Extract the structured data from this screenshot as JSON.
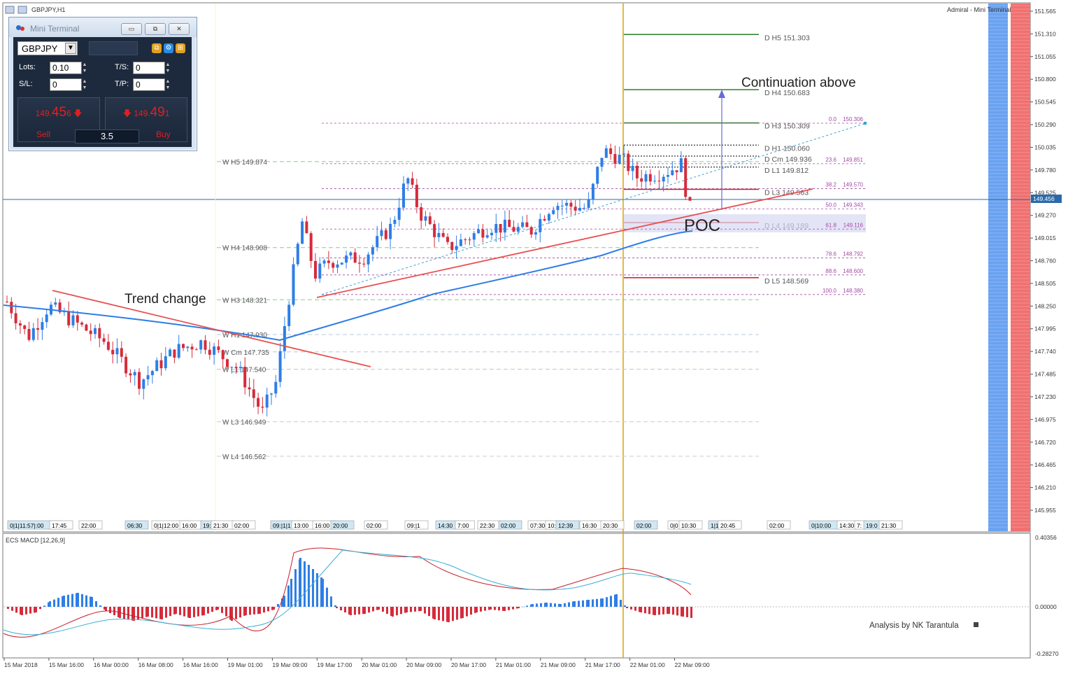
{
  "window": {
    "title": "GBPJPY,H1",
    "broker_label": "Admiral - Mini Terminal"
  },
  "colors": {
    "bull": "#2e7ee6",
    "bear": "#d62b3b",
    "ma": "#2e7ee6",
    "trendline": "#e85050",
    "pivot_green": "#2a7f2a",
    "pivot_red": "#cc1f1f",
    "vline": "#e0a000",
    "fib": "#a24aa2",
    "weekly_pivot": "#88cc88"
  },
  "mini_terminal": {
    "title": "Mini Terminal",
    "symbol": "GBPJPY",
    "lots_label": "Lots:",
    "lots_value": "0.10",
    "ts_label": "T/S:",
    "ts_value": "0",
    "sl_label": "S/L:",
    "sl_value": "0",
    "tp_label": "T/P:",
    "tp_value": "0",
    "sell_price_main": "149.",
    "sell_price_big": "45",
    "sell_price_small": "6",
    "buy_price_main": "149.",
    "buy_price_big": "49",
    "buy_price_small": "1",
    "sell_label": "Sell",
    "buy_label": "Buy",
    "spread": "3.5",
    "min_btn": "▭",
    "restore_btn": "⧉",
    "close_btn": "✕"
  },
  "annotations": {
    "trend_change": "Trend change",
    "continuation": "Continuation above",
    "poc": "POC",
    "credit": "Analysis by NK Tarantula"
  },
  "macd": {
    "label": "ECS MACD [12,26,9]",
    "scale": [
      "0.40356",
      "0.00000",
      "-0.28270"
    ]
  },
  "price_axis": [
    "151.565",
    "151.310",
    "151.055",
    "150.800",
    "150.545",
    "150.290",
    "150.035",
    "149.780",
    "149.525",
    "149.270",
    "149.015",
    "148.760",
    "148.505",
    "148.250",
    "147.995",
    "147.740",
    "147.485",
    "147.230",
    "146.975",
    "146.720",
    "146.465",
    "146.210",
    "145.955"
  ],
  "current_price": "149.456",
  "date_axis": [
    "15 Mar 2018",
    "15 Mar 16:00",
    "16 Mar 00:00",
    "16 Mar 08:00",
    "16 Mar 16:00",
    "19 Mar 01:00",
    "19 Mar 09:00",
    "19 Mar 17:00",
    "20 Mar 01:00",
    "20 Mar 09:00",
    "20 Mar 17:00",
    "21 Mar 01:00",
    "21 Mar 09:00",
    "21 Mar 17:00",
    "22 Mar 01:00",
    "22 Mar 09:00"
  ],
  "session_labels": [
    "0|1|11:57|:00",
    "17:45",
    "22:00",
    "06:30",
    "0|1|12:00",
    "16:00",
    "19:",
    "21:30",
    "02:00",
    "09:|1|1",
    "13:00",
    "16:00",
    "20:00",
    "02:00",
    "09:|1",
    "14:30",
    "7:00",
    "22:30",
    "02:00",
    "07:30",
    "10:",
    "12:39",
    "16:30",
    "20:30",
    "02:00",
    "0|0",
    "10:30",
    "1|16:00",
    "20:45",
    "02:00",
    "0|10:00",
    "14:30",
    "7:",
    "19:0",
    "21:30"
  ],
  "pivots_daily": [
    {
      "label": "D  H5 151.303",
      "price": 151.303
    },
    {
      "label": "D  H4 150.683",
      "price": 150.683
    },
    {
      "label": "D  H3 150.309",
      "price": 150.309
    },
    {
      "label": "D  H1 150.060",
      "price": 150.06
    },
    {
      "label": "D  Cm  149.936",
      "price": 149.936
    },
    {
      "label": "D  L1 149.812",
      "price": 149.812
    },
    {
      "label": "D  L3 149.563",
      "price": 149.563
    },
    {
      "label": "D  L4 149.189",
      "price": 149.189
    },
    {
      "label": "D  L5 148.569",
      "price": 148.569
    }
  ],
  "pivots_weekly": [
    {
      "label": "W  H5 149.874",
      "price": 149.874
    },
    {
      "label": "W  H4 148.908",
      "price": 148.908
    },
    {
      "label": "W  H3 148.321",
      "price": 148.321
    },
    {
      "label": "W  H1 147.930",
      "price": 147.93
    },
    {
      "label": "W  Cm 147.735",
      "price": 147.735
    },
    {
      "label": "W  L1 147.540",
      "price": 147.54
    },
    {
      "label": "W  L3 146.949",
      "price": 146.949
    },
    {
      "label": "W  L4 146.562",
      "price": 146.562
    }
  ],
  "fib_levels": [
    {
      "pct": "0.0",
      "price": "150.306"
    },
    {
      "pct": "23.6",
      "price": "149.851"
    },
    {
      "pct": "38.2",
      "price": "149.570"
    },
    {
      "pct": "50.0",
      "price": "149.343"
    },
    {
      "pct": "61.8",
      "price": "149.116"
    },
    {
      "pct": "78.6",
      "price": "148.792"
    },
    {
      "pct": "88.6",
      "price": "148.600"
    },
    {
      "pct": "100.0",
      "price": "148.380"
    }
  ]
}
